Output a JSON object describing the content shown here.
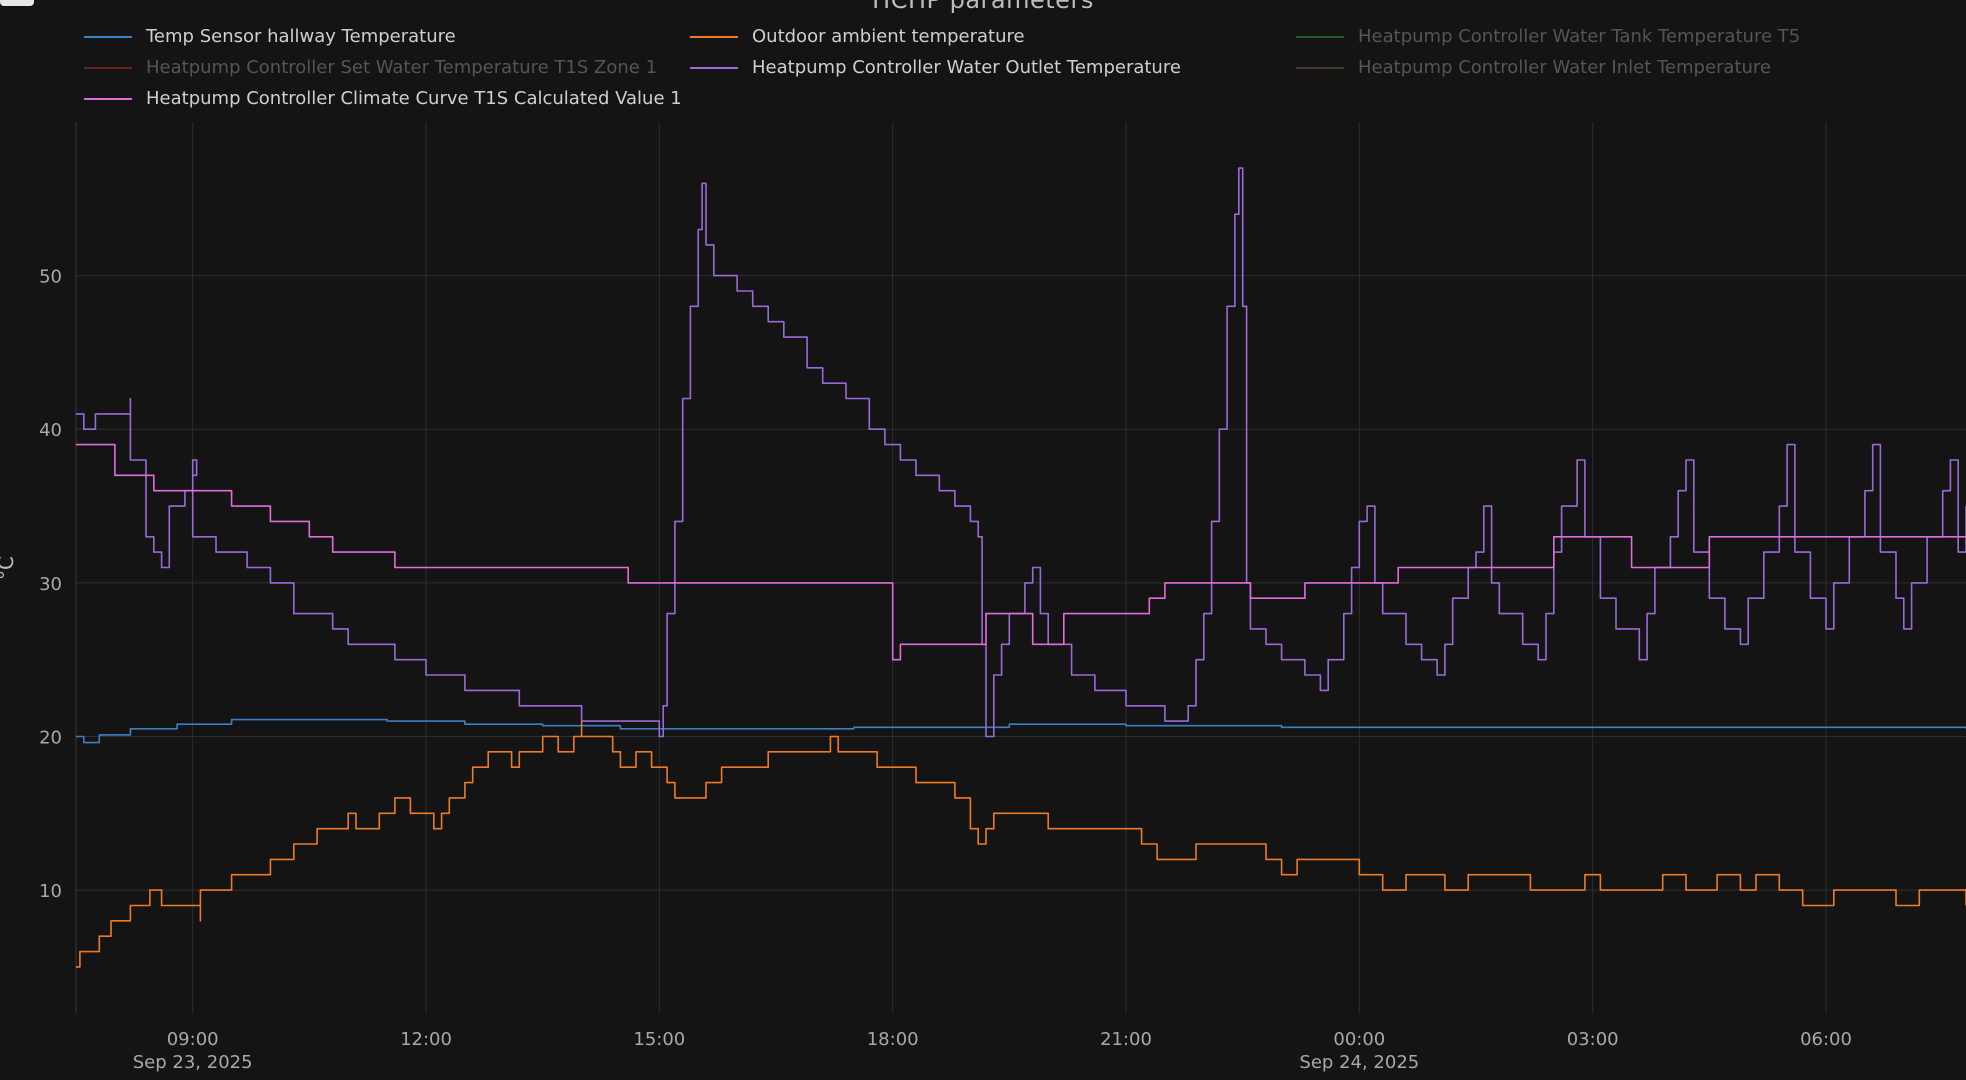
{
  "chart_title": "HCHP parameters",
  "chart_data": {
    "type": "line",
    "title": "HCHP parameters",
    "ylabel": "°C",
    "ylim": [
      2,
      60
    ],
    "y_ticks": [
      10,
      20,
      30,
      40,
      50
    ],
    "x_range_hours": [
      7.5,
      31.8
    ],
    "x_ticks": [
      {
        "label": "09:00",
        "sub": "Sep 23, 2025",
        "h": 9
      },
      {
        "label": "12:00",
        "sub": "",
        "h": 12
      },
      {
        "label": "15:00",
        "sub": "",
        "h": 15
      },
      {
        "label": "18:00",
        "sub": "",
        "h": 18
      },
      {
        "label": "21:00",
        "sub": "",
        "h": 21
      },
      {
        "label": "00:00",
        "sub": "Sep 24, 2025",
        "h": 24
      },
      {
        "label": "03:00",
        "sub": "",
        "h": 27
      },
      {
        "label": "06:00",
        "sub": "",
        "h": 30
      }
    ],
    "grid": true,
    "legend_position": "top",
    "series": [
      {
        "name": "Temp Sensor hallway Temperature",
        "color": "#3d7fc1",
        "visible": true,
        "points": [
          [
            7.5,
            20.0
          ],
          [
            7.6,
            19.6
          ],
          [
            7.8,
            20.1
          ],
          [
            8.2,
            20.5
          ],
          [
            8.8,
            20.8
          ],
          [
            9.5,
            21.1
          ],
          [
            10.5,
            21.1
          ],
          [
            11.5,
            21.0
          ],
          [
            12.5,
            20.8
          ],
          [
            13.5,
            20.7
          ],
          [
            14.5,
            20.5
          ],
          [
            16,
            20.5
          ],
          [
            17.5,
            20.6
          ],
          [
            19.5,
            20.8
          ],
          [
            21,
            20.7
          ],
          [
            23,
            20.6
          ],
          [
            26,
            20.6
          ],
          [
            29,
            20.6
          ],
          [
            31.8,
            20.5
          ]
        ]
      },
      {
        "name": "Outdoor ambient temperature",
        "color": "#ee7b24",
        "visible": true,
        "points": [
          [
            7.5,
            5
          ],
          [
            7.55,
            6
          ],
          [
            7.8,
            7
          ],
          [
            7.95,
            8
          ],
          [
            8.2,
            9
          ],
          [
            8.45,
            10
          ],
          [
            8.6,
            9
          ],
          [
            9.0,
            9
          ],
          [
            9.1,
            8
          ],
          [
            9.1,
            9
          ],
          [
            9.1,
            10
          ],
          [
            9.5,
            11
          ],
          [
            10.0,
            12
          ],
          [
            10.3,
            13
          ],
          [
            10.6,
            14
          ],
          [
            10.9,
            14
          ],
          [
            11.0,
            15
          ],
          [
            11.1,
            14
          ],
          [
            11.4,
            15
          ],
          [
            11.6,
            16
          ],
          [
            11.8,
            15
          ],
          [
            12.1,
            14
          ],
          [
            12.2,
            15
          ],
          [
            12.3,
            16
          ],
          [
            12.5,
            17
          ],
          [
            12.6,
            18
          ],
          [
            12.8,
            19
          ],
          [
            13.1,
            18
          ],
          [
            13.2,
            19
          ],
          [
            13.5,
            20
          ],
          [
            13.7,
            19
          ],
          [
            13.9,
            20
          ],
          [
            14.0,
            21
          ],
          [
            14.0,
            20
          ],
          [
            14.2,
            20
          ],
          [
            14.4,
            19
          ],
          [
            14.5,
            18
          ],
          [
            14.7,
            19
          ],
          [
            14.9,
            18
          ],
          [
            15.1,
            17
          ],
          [
            15.2,
            16
          ],
          [
            15.6,
            17
          ],
          [
            15.8,
            18
          ],
          [
            16.4,
            19
          ],
          [
            17.0,
            19
          ],
          [
            17.2,
            20
          ],
          [
            17.3,
            19
          ],
          [
            17.8,
            18
          ],
          [
            18.3,
            17
          ],
          [
            18.8,
            16
          ],
          [
            19.0,
            14
          ],
          [
            19.1,
            13
          ],
          [
            19.2,
            14
          ],
          [
            19.3,
            15
          ],
          [
            19.7,
            15
          ],
          [
            20.0,
            14
          ],
          [
            20.4,
            14
          ],
          [
            20.9,
            14
          ],
          [
            21.2,
            13
          ],
          [
            21.4,
            12
          ],
          [
            21.7,
            12
          ],
          [
            21.9,
            13
          ],
          [
            22.4,
            13
          ],
          [
            22.8,
            12
          ],
          [
            23.0,
            11
          ],
          [
            23.2,
            12
          ],
          [
            23.7,
            12
          ],
          [
            24.0,
            11
          ],
          [
            24.3,
            10
          ],
          [
            24.6,
            11
          ],
          [
            25.1,
            10
          ],
          [
            25.4,
            11
          ],
          [
            25.8,
            11
          ],
          [
            26.2,
            10
          ],
          [
            26.5,
            10
          ],
          [
            26.9,
            11
          ],
          [
            27.1,
            10
          ],
          [
            27.4,
            10
          ],
          [
            27.9,
            11
          ],
          [
            28.2,
            10
          ],
          [
            28.6,
            11
          ],
          [
            28.9,
            10
          ],
          [
            29.1,
            11
          ],
          [
            29.4,
            10
          ],
          [
            29.7,
            9
          ],
          [
            30.1,
            10
          ],
          [
            30.6,
            10
          ],
          [
            30.9,
            9
          ],
          [
            31.2,
            10
          ],
          [
            31.6,
            10
          ],
          [
            31.8,
            9
          ]
        ]
      },
      {
        "name": "Heatpump Controller Water Tank Temperature T5",
        "color": "#2c8a2c",
        "visible": false,
        "points": []
      },
      {
        "name": "Heatpump Controller Set Water Temperature T1S Zone 1",
        "color": "#a23030",
        "visible": false,
        "points": []
      },
      {
        "name": "Heatpump Controller Water Outlet Temperature",
        "color": "#9a6ad8",
        "visible": true,
        "points": [
          [
            7.5,
            41
          ],
          [
            7.6,
            40
          ],
          [
            7.75,
            40
          ],
          [
            7.75,
            41
          ],
          [
            8.1,
            41
          ],
          [
            8.2,
            42
          ],
          [
            8.2,
            38
          ],
          [
            8.4,
            33
          ],
          [
            8.5,
            32
          ],
          [
            8.6,
            31
          ],
          [
            8.7,
            35
          ],
          [
            8.9,
            36
          ],
          [
            9.0,
            37
          ],
          [
            9.05,
            38
          ],
          [
            9.0,
            33
          ],
          [
            9.3,
            32
          ],
          [
            9.7,
            31
          ],
          [
            10.0,
            30
          ],
          [
            10.3,
            28
          ],
          [
            10.8,
            27
          ],
          [
            11.0,
            26
          ],
          [
            11.6,
            25
          ],
          [
            12.0,
            24
          ],
          [
            12.5,
            23
          ],
          [
            13.2,
            22
          ],
          [
            14.0,
            21
          ],
          [
            15.0,
            20
          ],
          [
            15.05,
            22
          ],
          [
            15.1,
            28
          ],
          [
            15.2,
            34
          ],
          [
            15.3,
            42
          ],
          [
            15.4,
            48
          ],
          [
            15.5,
            53
          ],
          [
            15.55,
            56
          ],
          [
            15.6,
            52
          ],
          [
            15.7,
            50
          ],
          [
            16.0,
            49
          ],
          [
            16.2,
            48
          ],
          [
            16.4,
            47
          ],
          [
            16.6,
            46
          ],
          [
            16.9,
            44
          ],
          [
            17.1,
            43
          ],
          [
            17.4,
            42
          ],
          [
            17.7,
            40
          ],
          [
            17.9,
            39
          ],
          [
            18.1,
            38
          ],
          [
            18.3,
            37
          ],
          [
            18.6,
            36
          ],
          [
            18.8,
            35
          ],
          [
            19.0,
            34
          ],
          [
            19.1,
            33
          ],
          [
            19.15,
            26
          ],
          [
            19.2,
            20
          ],
          [
            19.3,
            24
          ],
          [
            19.4,
            26
          ],
          [
            19.5,
            28
          ],
          [
            19.7,
            30
          ],
          [
            19.8,
            31
          ],
          [
            19.9,
            28
          ],
          [
            20.0,
            26
          ],
          [
            20.3,
            24
          ],
          [
            20.6,
            23
          ],
          [
            21.0,
            22
          ],
          [
            21.5,
            21
          ],
          [
            21.7,
            21
          ],
          [
            21.8,
            22
          ],
          [
            21.9,
            25
          ],
          [
            22.0,
            28
          ],
          [
            22.1,
            34
          ],
          [
            22.2,
            40
          ],
          [
            22.3,
            48
          ],
          [
            22.4,
            54
          ],
          [
            22.45,
            57
          ],
          [
            22.5,
            48
          ],
          [
            22.55,
            30
          ],
          [
            22.6,
            27
          ],
          [
            22.8,
            26
          ],
          [
            23.0,
            25
          ],
          [
            23.3,
            24
          ],
          [
            23.5,
            23
          ],
          [
            23.6,
            25
          ],
          [
            23.8,
            28
          ],
          [
            23.9,
            31
          ],
          [
            24.0,
            34
          ],
          [
            24.1,
            35
          ],
          [
            24.2,
            30
          ],
          [
            24.3,
            28
          ],
          [
            24.6,
            26
          ],
          [
            24.8,
            25
          ],
          [
            25.0,
            24
          ],
          [
            25.1,
            26
          ],
          [
            25.2,
            29
          ],
          [
            25.4,
            31
          ],
          [
            25.5,
            32
          ],
          [
            25.6,
            35
          ],
          [
            25.7,
            30
          ],
          [
            25.8,
            28
          ],
          [
            26.1,
            26
          ],
          [
            26.3,
            25
          ],
          [
            26.4,
            28
          ],
          [
            26.5,
            32
          ],
          [
            26.6,
            35
          ],
          [
            26.8,
            38
          ],
          [
            26.9,
            33
          ],
          [
            27.1,
            29
          ],
          [
            27.3,
            27
          ],
          [
            27.6,
            25
          ],
          [
            27.7,
            28
          ],
          [
            27.8,
            31
          ],
          [
            28.0,
            33
          ],
          [
            28.1,
            36
          ],
          [
            28.2,
            38
          ],
          [
            28.3,
            32
          ],
          [
            28.5,
            29
          ],
          [
            28.7,
            27
          ],
          [
            28.9,
            26
          ],
          [
            29.0,
            29
          ],
          [
            29.2,
            32
          ],
          [
            29.4,
            35
          ],
          [
            29.5,
            39
          ],
          [
            29.6,
            32
          ],
          [
            29.8,
            29
          ],
          [
            30.0,
            27
          ],
          [
            30.1,
            30
          ],
          [
            30.3,
            33
          ],
          [
            30.5,
            36
          ],
          [
            30.6,
            39
          ],
          [
            30.7,
            32
          ],
          [
            30.9,
            29
          ],
          [
            31.0,
            27
          ],
          [
            31.1,
            30
          ],
          [
            31.3,
            33
          ],
          [
            31.5,
            36
          ],
          [
            31.6,
            38
          ],
          [
            31.7,
            32
          ],
          [
            31.8,
            35
          ]
        ]
      },
      {
        "name": "Heatpump Controller Water Inlet Temperature",
        "color": "#6b4f3a",
        "visible": false,
        "points": []
      },
      {
        "name": "Heatpump Controller Climate Curve T1S Calculated Value 1",
        "color": "#e16ddc",
        "visible": true,
        "points": [
          [
            7.5,
            39
          ],
          [
            8.0,
            39
          ],
          [
            8.0,
            37
          ],
          [
            8.5,
            37
          ],
          [
            8.5,
            36
          ],
          [
            9.5,
            36
          ],
          [
            9.5,
            35
          ],
          [
            10.0,
            35
          ],
          [
            10.0,
            34
          ],
          [
            10.5,
            34
          ],
          [
            10.5,
            33
          ],
          [
            10.8,
            33
          ],
          [
            10.8,
            32
          ],
          [
            11.6,
            32
          ],
          [
            11.6,
            31
          ],
          [
            14.6,
            31
          ],
          [
            14.6,
            30
          ],
          [
            18.0,
            30
          ],
          [
            18.0,
            25
          ],
          [
            18.1,
            25
          ],
          [
            18.1,
            26
          ],
          [
            19.2,
            26
          ],
          [
            19.2,
            28
          ],
          [
            19.8,
            28
          ],
          [
            19.8,
            26
          ],
          [
            20.2,
            26
          ],
          [
            20.2,
            28
          ],
          [
            21.3,
            28
          ],
          [
            21.3,
            29
          ],
          [
            21.5,
            29
          ],
          [
            21.5,
            30
          ],
          [
            22.6,
            30
          ],
          [
            22.6,
            29
          ],
          [
            23.3,
            29
          ],
          [
            23.3,
            30
          ],
          [
            24.5,
            30
          ],
          [
            24.5,
            31
          ],
          [
            26.5,
            31
          ],
          [
            26.5,
            33
          ],
          [
            27.5,
            33
          ],
          [
            27.5,
            31
          ],
          [
            28.5,
            31
          ],
          [
            28.5,
            33
          ],
          [
            31.8,
            33
          ]
        ]
      }
    ]
  }
}
